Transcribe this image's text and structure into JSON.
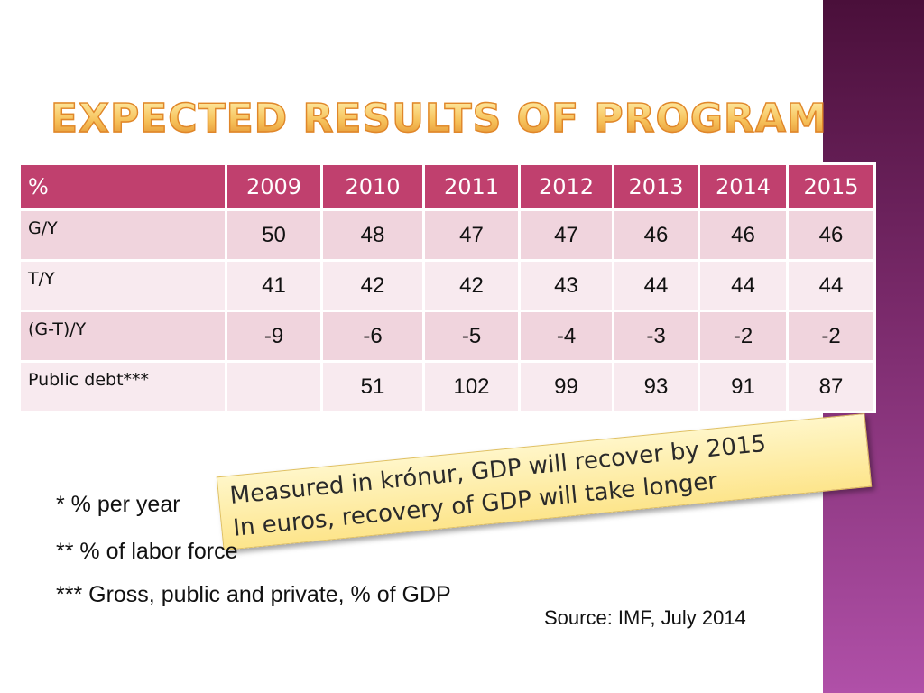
{
  "title": "Expected results of program",
  "table": {
    "corner_label": "%",
    "years": [
      "2009",
      "2010",
      "2011",
      "2012",
      "2013",
      "2014",
      "2015"
    ],
    "rows": [
      {
        "label": "G/Y",
        "values": [
          "50",
          "48",
          "47",
          "47",
          "46",
          "46",
          "46"
        ]
      },
      {
        "label": "T/Y",
        "values": [
          "41",
          "42",
          "42",
          "43",
          "44",
          "44",
          "44"
        ]
      },
      {
        "label": "(G-T)/Y",
        "values": [
          "-9",
          "-6",
          "-5",
          "-4",
          "-3",
          "-2",
          "-2"
        ]
      },
      {
        "label": "Public debt***",
        "values": [
          "",
          "51",
          "102",
          "99",
          "93",
          "91",
          "87"
        ]
      }
    ]
  },
  "callout": {
    "line1": "Measured in krónur, GDP will recover by 2015",
    "line2": "In euros, recovery of GDP will take longer"
  },
  "footnotes": [
    "* % per year",
    "** % of labor force",
    "*** Gross, public and private, % of GDP"
  ],
  "source": "Source: IMF, July 2014",
  "colors": {
    "header": "#c0406e",
    "row_odd": "#f0d4dd",
    "row_even": "#f8eaef",
    "title_fill": "#f6c15a",
    "callout": "#fde58c",
    "sidebar": "#7a2a6b"
  }
}
